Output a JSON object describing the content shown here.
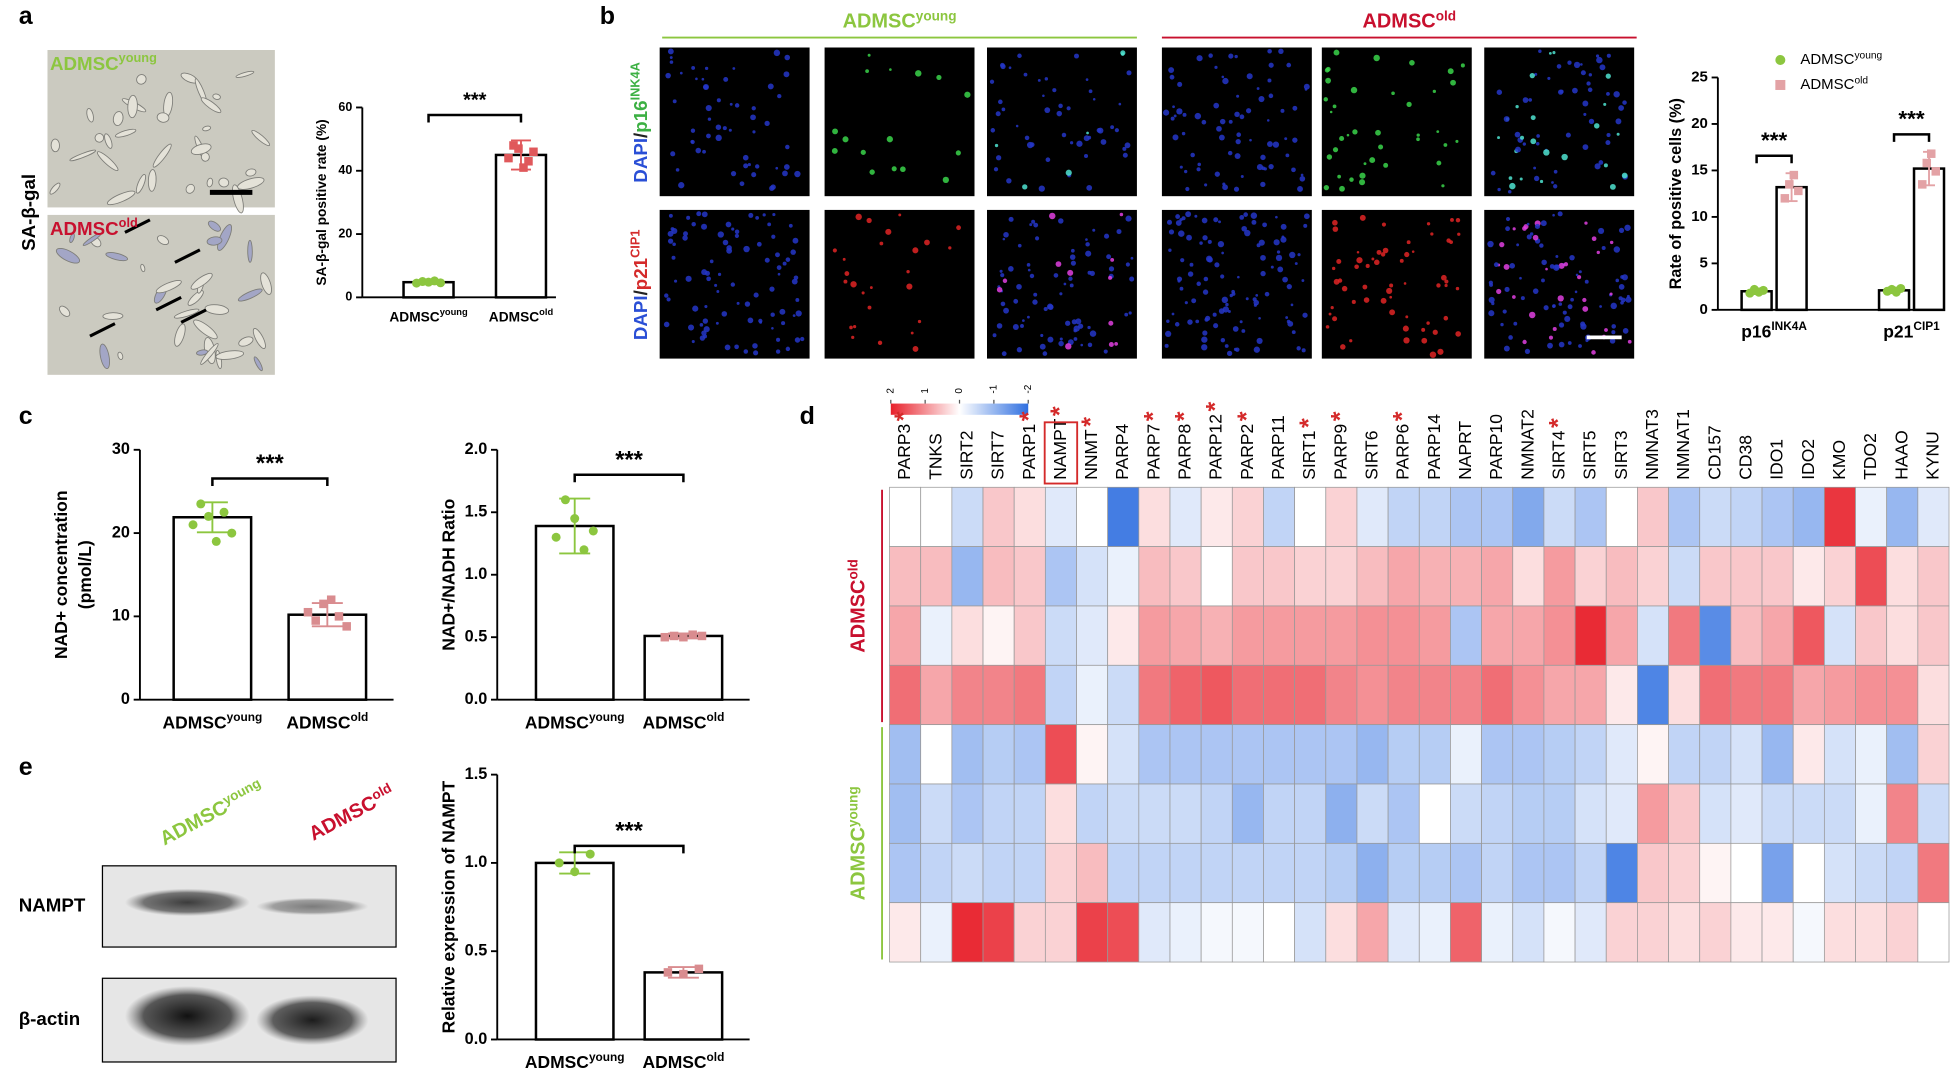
{
  "panel_labels": [
    "a",
    "b",
    "c",
    "d",
    "e"
  ],
  "panel_a_images": {
    "young": {
      "text": "ADMSC",
      "sup": "young"
    },
    "old": {
      "text": "ADMSC",
      "sup": "old"
    },
    "stain": "SA-β-gal"
  },
  "panel_b_images": {
    "young": {
      "text": "ADMSC",
      "sup": "young"
    },
    "old": {
      "text": "ADMSC",
      "sup": "old"
    },
    "rows": [
      {
        "parts": [
          {
            "text": "DAPI",
            "color": "#2a4fd6"
          },
          {
            "text": "/",
            "color": "#222222"
          },
          {
            "text": "p16",
            "sup": "INK4A",
            "color": "#3cb043"
          }
        ]
      },
      {
        "parts": [
          {
            "text": "DAPI",
            "color": "#2a4fd6"
          },
          {
            "text": "/",
            "color": "#222222"
          },
          {
            "text": "p21",
            "sup": "CIP1",
            "color": "#d42a2a"
          }
        ]
      }
    ]
  },
  "panel_e_blot": {
    "young": {
      "text": "ADMSC",
      "sup": "young"
    },
    "old": {
      "text": "ADMSC",
      "sup": "old"
    },
    "bands": [
      "NAMPT",
      "β-actin"
    ]
  },
  "chart_data": [
    {
      "type": "bar",
      "ylabel": "SA-β-gal positive rate (%)",
      "categories": [
        {
          "text": "ADMSC",
          "sup": "young"
        },
        {
          "text": "ADMSC",
          "sup": "old"
        }
      ],
      "values": [
        4.8,
        45
      ],
      "errors": [
        0.6,
        4.6
      ],
      "points": [
        [
          4.5,
          5,
          4.8,
          5.2,
          4.6
        ],
        [
          44,
          48,
          47,
          41,
          43,
          46
        ]
      ],
      "colors": [
        "#8cc63f",
        "#e0585b"
      ],
      "ylim": [
        0,
        60
      ],
      "yticks": [
        0,
        20,
        40,
        60
      ],
      "significance": "***"
    },
    {
      "type": "grouped_bar",
      "ylabel": "Rate of positive cells (%)",
      "categories": [
        {
          "text": "p16",
          "sup": "INK4A"
        },
        {
          "text": "p21",
          "sup": "CIP1"
        }
      ],
      "series": [
        {
          "name": {
            "text": "ADMSC",
            "sup": "young"
          },
          "color": "#8cc63f",
          "values": [
            2.0,
            2.1
          ],
          "errors": [
            0.3,
            0.3
          ],
          "points": [
            [
              1.8,
              2.2,
              1.9,
              2.1
            ],
            [
              2.0,
              2.2,
              1.9,
              2.3
            ]
          ]
        },
        {
          "name": {
            "text": "ADMSC",
            "sup": "old"
          },
          "color": "#e3a2a5",
          "values": [
            13.2,
            15.2
          ],
          "errors": [
            1.5,
            1.8
          ],
          "points": [
            [
              12,
              13.5,
              14.5,
              12.8
            ],
            [
              13.5,
              15.8,
              16.8,
              14.9
            ]
          ]
        }
      ],
      "ylim": [
        0,
        25
      ],
      "yticks": [
        0,
        5,
        10,
        15,
        20,
        25
      ],
      "significance": [
        "***",
        "***"
      ],
      "legend": "top-right"
    },
    {
      "type": "bar",
      "ylabel": [
        "NAD+ concentration",
        "(pmol/L)"
      ],
      "categories": [
        {
          "text": "ADMSC",
          "sup": "young"
        },
        {
          "text": "ADMSC",
          "sup": "old"
        }
      ],
      "values": [
        21.9,
        10.2
      ],
      "errors": [
        1.8,
        1.4
      ],
      "points": [
        [
          21,
          23.5,
          22,
          19,
          22.5,
          20
        ],
        [
          10.5,
          9.5,
          11.5,
          12,
          10,
          8.8
        ]
      ],
      "colors": [
        "#8cc63f",
        "#d98c8f"
      ],
      "ylim": [
        0,
        30
      ],
      "yticks": [
        0,
        10,
        20,
        30
      ],
      "significance": "***"
    },
    {
      "type": "bar",
      "ylabel": "NAD+/NADH Ratio",
      "categories": [
        {
          "text": "ADMSC",
          "sup": "young"
        },
        {
          "text": "ADMSC",
          "sup": "old"
        }
      ],
      "values": [
        1.39,
        0.51
      ],
      "errors": [
        0.22,
        0.02
      ],
      "points": [
        [
          1.3,
          1.6,
          1.45,
          1.2,
          1.35
        ],
        [
          0.5,
          0.51,
          0.5,
          0.52,
          0.51
        ]
      ],
      "colors": [
        "#8cc63f",
        "#d98c8f"
      ],
      "ylim": [
        0,
        2
      ],
      "yticks": [
        {
          "value": 0,
          "label": "0.0"
        },
        0.5,
        {
          "value": 1,
          "label": "1.0"
        },
        1.5,
        {
          "value": 2,
          "label": "2.0"
        }
      ],
      "significance": "***"
    },
    {
      "type": "heatmap",
      "columns": [
        "PARP3",
        "TNKS",
        "SIRT2",
        "SIRT7",
        "PARP1",
        "NAMPT",
        "NNMT",
        "PARP4",
        "PARP7",
        "PARP8",
        "PARP12",
        "PARP2",
        "PARP11",
        "SIRT1",
        "PARP9",
        "SIRT6",
        "PARP6",
        "PARP14",
        "NAPRT",
        "PARP10",
        "NMNAT2",
        "SIRT4",
        "SIRT5",
        "SIRT3",
        "NMNAT3",
        "NMNAT1",
        "CD157",
        "CD38",
        "IDO1",
        "IDO2",
        "KMO",
        "TDO2",
        "HAAO",
        "KYNU"
      ],
      "significant": [
        true,
        false,
        false,
        false,
        true,
        true,
        true,
        false,
        true,
        true,
        true,
        true,
        false,
        true,
        true,
        false,
        true,
        false,
        false,
        false,
        false,
        true,
        false,
        false,
        false,
        false,
        false,
        false,
        false,
        false,
        false,
        false,
        false,
        false
      ],
      "significance": "*",
      "boxed_column": "NAMPT",
      "zlim": [
        -2,
        2
      ],
      "zticks": [
        2,
        1,
        0,
        -1,
        -2
      ],
      "row_groups": [
        {
          "name": {
            "text": "ADMSC",
            "sup": "old"
          },
          "color": "#c8102e",
          "values": [
            [
              0,
              0,
              -0.5,
              0.5,
              0.3,
              -0.3,
              0,
              -1.8,
              0.3,
              -0.3,
              0.2,
              0.4,
              -0.6,
              0,
              0.4,
              -0.3,
              -0.6,
              -0.6,
              -0.8,
              -0.8,
              -1.2,
              -0.5,
              -0.8,
              0,
              0.5,
              -0.8,
              -0.5,
              -0.6,
              -0.8,
              -1,
              1.8,
              -0.2,
              -1,
              -0.3
            ],
            [
              0.6,
              0.6,
              -1,
              0.6,
              0.5,
              -0.8,
              -0.4,
              -0.2,
              0.6,
              0.5,
              0,
              0.5,
              0.5,
              0.4,
              0.4,
              0.6,
              0.8,
              0.7,
              0.7,
              0.8,
              0.3,
              0.9,
              0.4,
              0.6,
              0.4,
              -0.5,
              0.5,
              0.5,
              0.5,
              0.2,
              0.4,
              1.6,
              0.3,
              0.5
            ],
            [
              0.8,
              -0.2,
              0.3,
              0.1,
              0.5,
              -0.5,
              -0.3,
              0.2,
              0.9,
              0.8,
              0.7,
              0.9,
              0.9,
              0.9,
              0.9,
              1,
              1,
              0.9,
              -0.8,
              0.8,
              0.8,
              1,
              1.9,
              0.8,
              -0.4,
              1.2,
              -1.6,
              0.6,
              0.8,
              1.5,
              -0.4,
              0.5,
              0.3,
              0.5
            ],
            [
              1.3,
              0.8,
              1.1,
              1.1,
              1.2,
              -0.6,
              -0.2,
              -0.5,
              1.2,
              1.4,
              1.5,
              1.3,
              1.3,
              1.3,
              1.1,
              1,
              1.1,
              1.1,
              1.1,
              1.3,
              1,
              0.8,
              0.8,
              0.2,
              -1.7,
              0.3,
              1.3,
              1.2,
              1.2,
              0.8,
              0.9,
              1,
              1,
              0.3
            ]
          ]
        },
        {
          "name": {
            "text": "ADMSC",
            "sup": "young"
          },
          "color": "#8cc63f",
          "values": [
            [
              -0.9,
              0,
              -0.9,
              -0.7,
              -0.8,
              1.6,
              0.1,
              -0.4,
              -0.8,
              -0.8,
              -0.8,
              -0.8,
              -0.8,
              -0.8,
              -0.8,
              -1,
              -0.7,
              -0.7,
              -0.2,
              -0.8,
              -0.8,
              -0.7,
              -0.6,
              -0.3,
              0.1,
              -0.6,
              -0.6,
              -0.4,
              -1,
              0.2,
              -0.4,
              -0.2,
              -0.9,
              0.4
            ],
            [
              -0.9,
              -0.5,
              -0.8,
              -0.6,
              -0.6,
              0.3,
              -0.6,
              -0.5,
              -0.5,
              -0.5,
              -0.6,
              -1,
              -0.6,
              -0.6,
              -1.1,
              -0.5,
              -0.8,
              0,
              -0.5,
              -0.6,
              -0.7,
              -0.7,
              -0.4,
              -0.3,
              0.9,
              0.5,
              -0.4,
              -0.3,
              -0.5,
              -0.5,
              -0.5,
              -0.2,
              1.1,
              -0.5
            ],
            [
              -0.8,
              -0.6,
              -0.5,
              -0.6,
              -0.6,
              0.4,
              0.6,
              -0.6,
              -0.6,
              -0.6,
              -0.6,
              -0.6,
              -0.6,
              -0.6,
              -0.7,
              -1.1,
              -0.7,
              -0.7,
              -0.8,
              -0.6,
              -0.8,
              -0.8,
              -0.6,
              -1.7,
              0.5,
              0.4,
              0.1,
              0,
              -1.3,
              0,
              -0.4,
              -0.5,
              -0.6,
              1.2
            ],
            [
              0.2,
              -0.2,
              1.9,
              1.7,
              0.4,
              0.4,
              1.7,
              1.6,
              -0.3,
              -0.2,
              -0.1,
              -0.1,
              0,
              -0.4,
              0.3,
              0.8,
              -0.3,
              -0.2,
              1.4,
              -0.2,
              -0.4,
              -0.1,
              -0.3,
              0.4,
              0.4,
              0.3,
              0.4,
              0.2,
              0.2,
              -0.1,
              0.3,
              0.3,
              0.4,
              0
            ]
          ]
        }
      ]
    },
    {
      "type": "bar",
      "ylabel": "Relative expression of NAMPT",
      "categories": [
        {
          "text": "ADMSC",
          "sup": "young"
        },
        {
          "text": "ADMSC",
          "sup": "old"
        }
      ],
      "values": [
        1.0,
        0.38
      ],
      "errors": [
        0.06,
        0.03
      ],
      "points": [
        [
          1.0,
          0.95,
          1.05
        ],
        [
          0.38,
          0.37,
          0.4
        ]
      ],
      "colors": [
        "#8cc63f",
        "#d98c8f"
      ],
      "ylim": [
        0,
        1.5
      ],
      "yticks": [
        {
          "value": 0,
          "label": "0.0"
        },
        0.5,
        {
          "value": 1,
          "label": "1.0"
        },
        1.5
      ],
      "significance": "***"
    }
  ]
}
